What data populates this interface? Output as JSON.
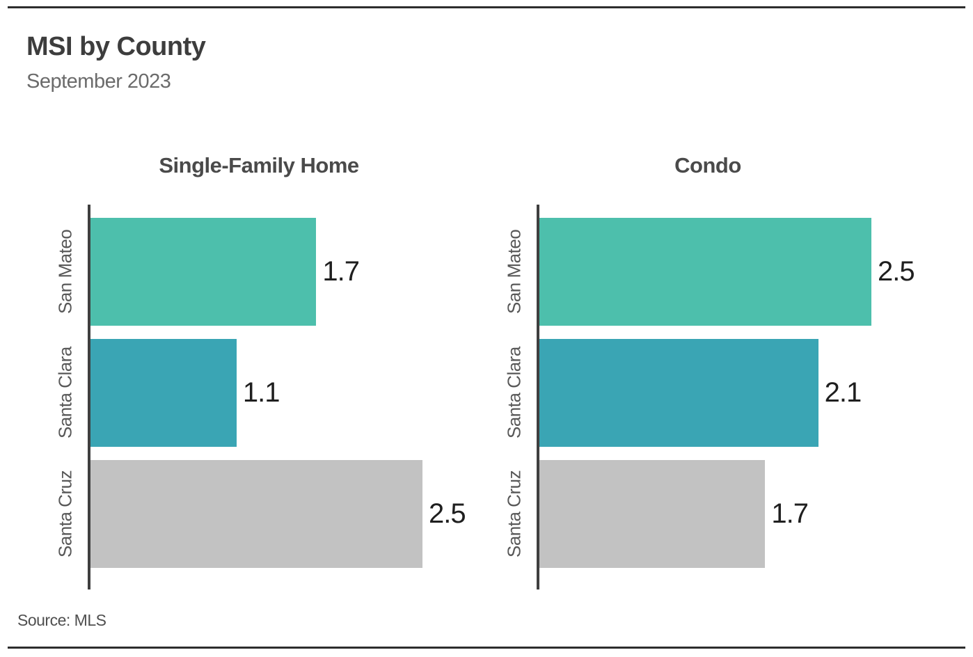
{
  "page": {
    "title": "MSI by County",
    "subtitle": "September 2023",
    "source": "Source: MLS"
  },
  "colors": {
    "san_mateo": "#4dbfac",
    "santa_clara": "#3aa5b4",
    "santa_cruz": "#c2c2c2",
    "axis": "#3f3f3f",
    "rule": "#2d2d2d"
  },
  "chart_data": [
    {
      "type": "bar",
      "orientation": "horizontal",
      "title": "Single-Family Home",
      "categories": [
        "San Mateo",
        "Santa Clara",
        "Santa Cruz"
      ],
      "values": [
        1.7,
        1.1,
        2.5
      ],
      "colors": [
        "#4dbfac",
        "#3aa5b4",
        "#c2c2c2"
      ],
      "xlim": [
        0,
        2.6
      ],
      "grid": false,
      "legend": false,
      "value_labels": true
    },
    {
      "type": "bar",
      "orientation": "horizontal",
      "title": "Condo",
      "categories": [
        "San Mateo",
        "Santa Clara",
        "Santa Cruz"
      ],
      "values": [
        2.5,
        2.1,
        1.7
      ],
      "colors": [
        "#4dbfac",
        "#3aa5b4",
        "#c2c2c2"
      ],
      "xlim": [
        0,
        2.6
      ],
      "grid": false,
      "legend": false,
      "value_labels": true
    }
  ]
}
